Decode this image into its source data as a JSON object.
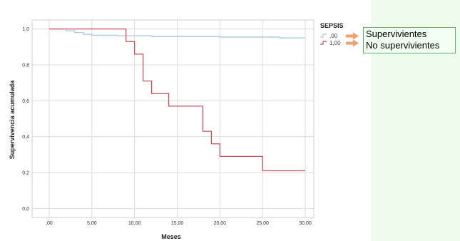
{
  "chart_data": {
    "type": "line",
    "step": true,
    "xlabel": "Meses",
    "ylabel": "Supervivencia acumulada",
    "xlim": [
      -2,
      31
    ],
    "ylim": [
      -0.05,
      1.05
    ],
    "x_ticks": [
      0,
      5,
      10,
      15,
      20,
      25,
      30
    ],
    "x_tick_labels": [
      ",00",
      "5,00",
      "10,00",
      "15,00",
      "20,00",
      "25,00",
      "30,00"
    ],
    "y_ticks": [
      0,
      0.2,
      0.4,
      0.6,
      0.8,
      1.0
    ],
    "y_tick_labels": [
      "0,0",
      "0,2",
      "0,4",
      "0,6",
      "0,8",
      "1,0"
    ],
    "grid": true,
    "legend": {
      "title": "SEPSIS",
      "position": "top-right"
    },
    "series": [
      {
        "name": ",00",
        "color": "#a8c8e0",
        "x": [
          0,
          2,
          3,
          4,
          5,
          8,
          12,
          20,
          27,
          30
        ],
        "y": [
          1.0,
          0.99,
          0.98,
          0.97,
          0.965,
          0.962,
          0.958,
          0.955,
          0.95,
          0.95
        ]
      },
      {
        "name": "1,00",
        "color": "#c8505e",
        "x": [
          0,
          9,
          10,
          11,
          12,
          14,
          18,
          19,
          20,
          25,
          30
        ],
        "y": [
          1.0,
          0.93,
          0.86,
          0.71,
          0.64,
          0.57,
          0.43,
          0.36,
          0.29,
          0.21,
          0.21
        ]
      }
    ]
  },
  "annotation": {
    "arrow_color": "#f0a070",
    "labels": [
      "Supervivientes",
      "No supervivientes"
    ]
  }
}
